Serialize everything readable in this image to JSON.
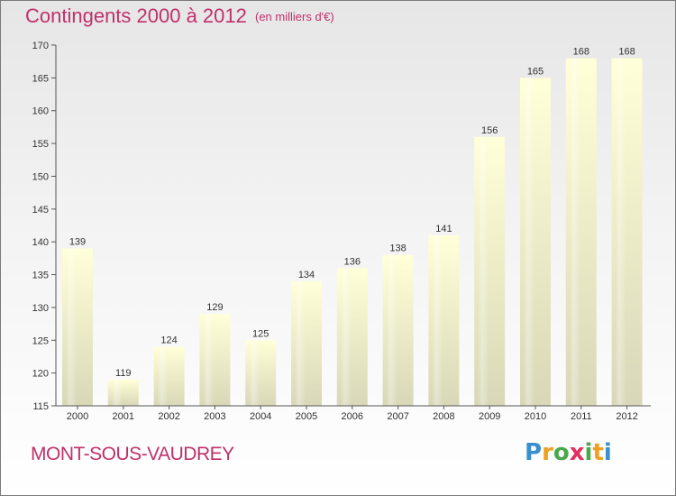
{
  "title": "Contingents 2000 à 2012",
  "subtitle": "(en milliers d'€)",
  "commune": "MONT-SOUS-VAUDREY",
  "logo": {
    "letters": [
      "P",
      "r",
      "o",
      "x",
      "i",
      "t",
      "i"
    ],
    "colors": [
      "#3a8fd0",
      "#f0a020",
      "#4aa84a",
      "#e03060",
      "#4aa84a",
      "#f0a020",
      "#3a8fd0"
    ]
  },
  "colors": {
    "accent": "#c0306a",
    "bar_top": "#ffffd8",
    "bar_bottom": "#d8d8b8"
  },
  "chart_data": {
    "type": "bar",
    "categories": [
      "2000",
      "2001",
      "2002",
      "2003",
      "2004",
      "2005",
      "2006",
      "2007",
      "2008",
      "2009",
      "2010",
      "2011",
      "2012"
    ],
    "values": [
      139,
      119,
      124,
      129,
      125,
      134,
      136,
      138,
      141,
      156,
      165,
      168,
      168
    ],
    "data_labels": [
      "139",
      "119",
      "124",
      "129",
      "125",
      "134",
      "136",
      "138",
      "141",
      "156",
      "165",
      "168",
      "168"
    ],
    "ylim": [
      115,
      170
    ],
    "yticks": [
      115,
      120,
      125,
      130,
      135,
      140,
      145,
      150,
      155,
      160,
      165,
      170
    ],
    "ytick_labels": [
      "115",
      "120",
      "125",
      "130",
      "135",
      "140",
      "145",
      "150",
      "155",
      "160",
      "165",
      "170"
    ],
    "grid": false
  }
}
